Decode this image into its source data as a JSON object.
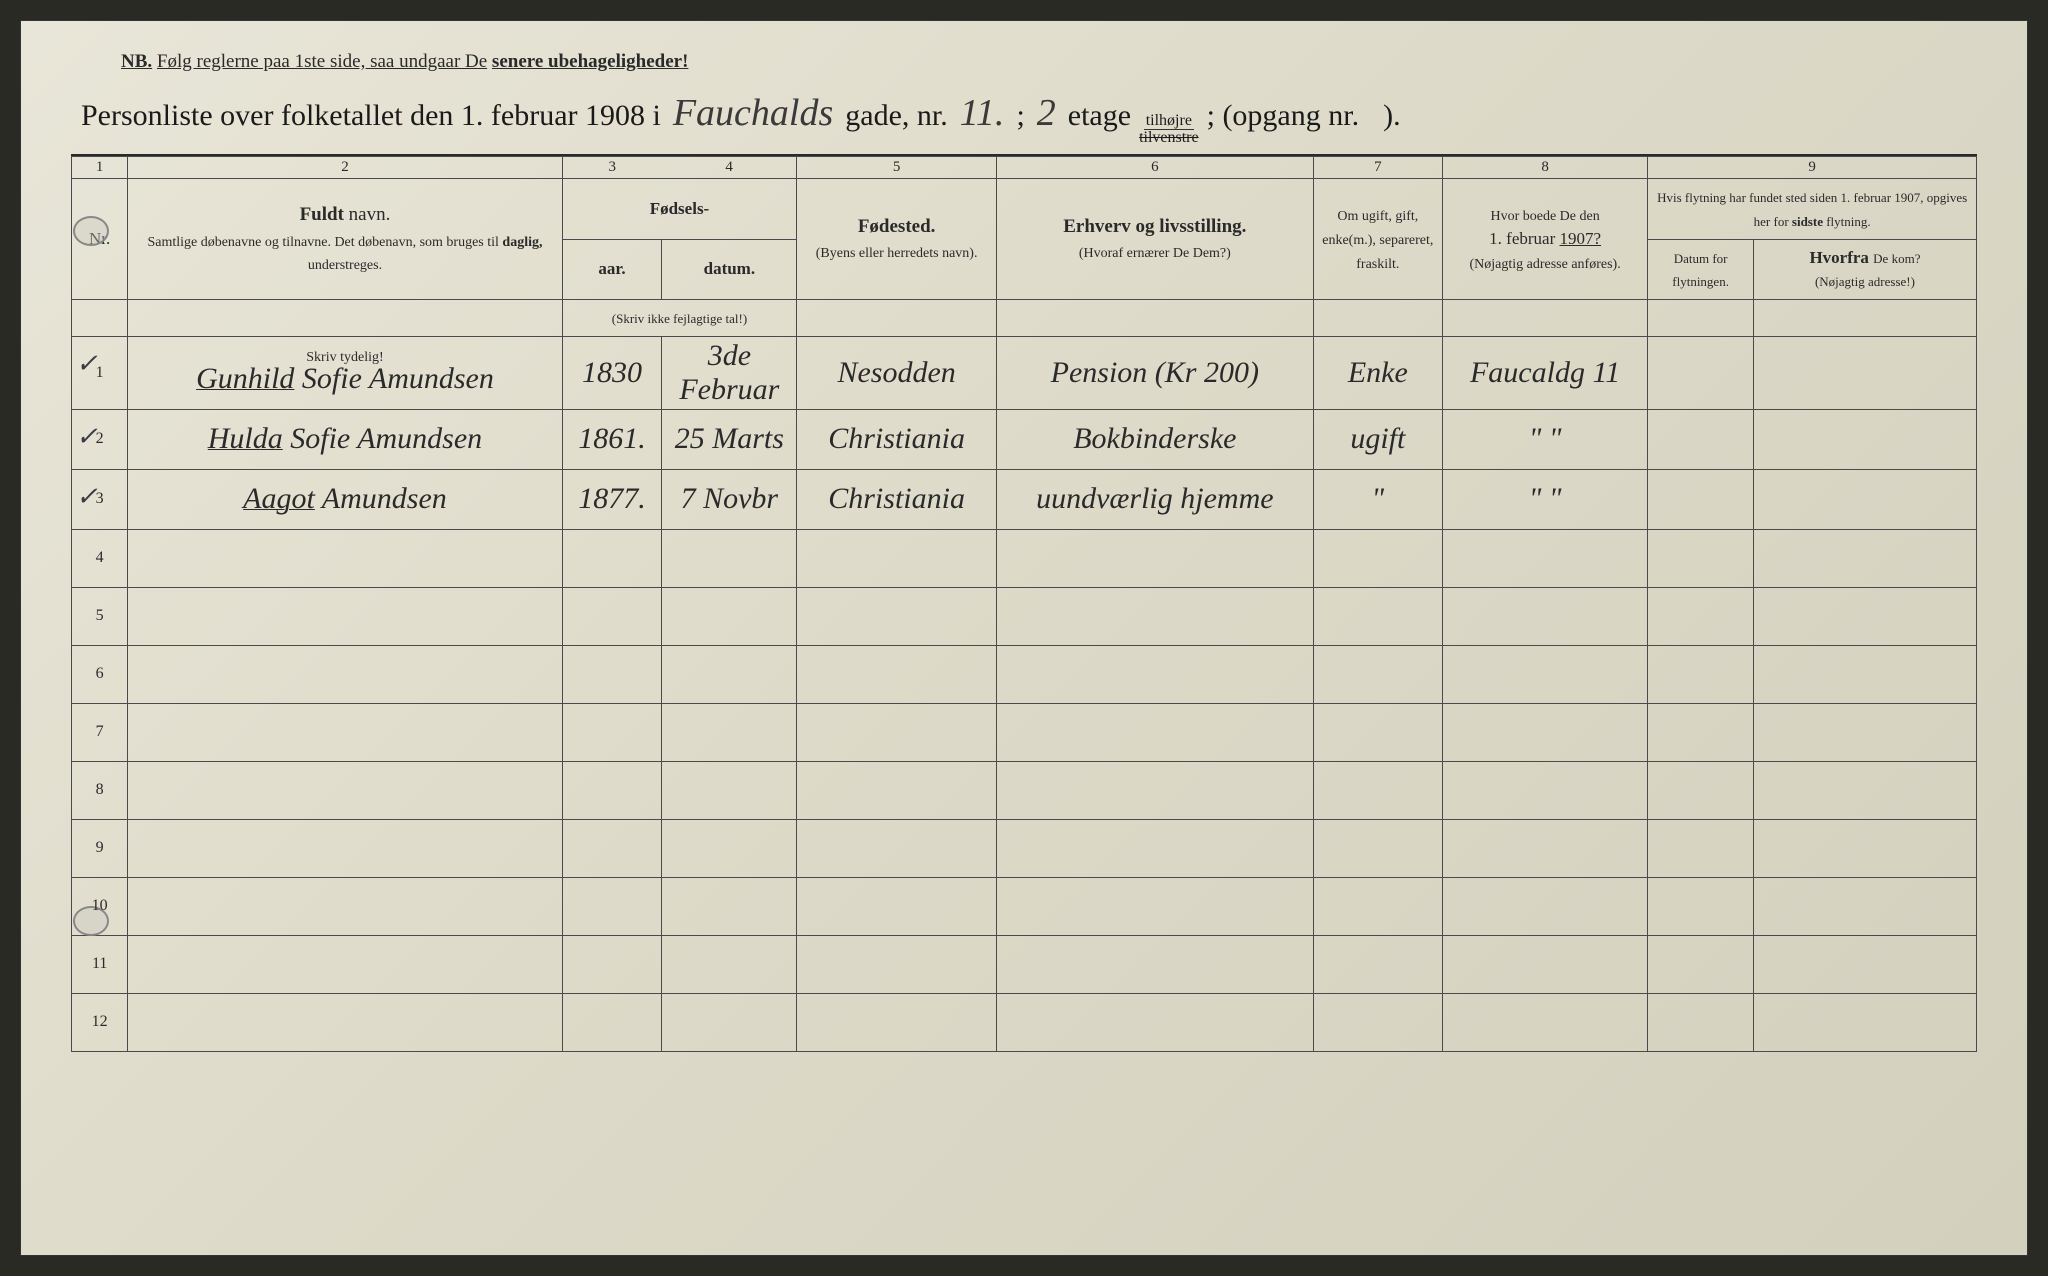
{
  "header": {
    "nb_prefix": "NB.",
    "nb_text_1": "Følg reglerne paa 1ste side, saa undgaar De",
    "nb_text_2": "senere ubehageligheder!",
    "title_1": "Personliste over folketallet den 1. februar 1908 i",
    "street": "Fauchalds",
    "title_2": "gade, nr.",
    "house_nr": "11.",
    "title_3": ";",
    "floor": "2",
    "title_4": "etage",
    "side_top": "tilhøjre",
    "side_bottom": "tilvenstre",
    "title_5": "; (opgang nr.",
    "entrance": "",
    "title_6": ")."
  },
  "colnums": [
    "1",
    "2",
    "3",
    "4",
    "5",
    "6",
    "7",
    "8",
    "9"
  ],
  "headers": {
    "nr": "Nr.",
    "name_main": "Fuldt",
    "name_suffix": "navn.",
    "name_sub": "Samtlige døbenavne og tilnavne. Det døbenavn, som bruges til",
    "name_sub_bold": "daglig,",
    "name_sub_end": "understreges.",
    "birth_header": "Fødsels-",
    "birth_year": "aar.",
    "birth_date": "datum.",
    "birth_note": "(Skriv ikke fejlagtige tal!)",
    "birthplace": "Fødested.",
    "birthplace_sub": "(Byens eller herredets navn).",
    "occupation": "Erhverv og livsstilling.",
    "occupation_sub": "(Hvoraf ernærer De Dem?)",
    "civil": "Om ugift, gift, enke(m.), separeret, fraskilt.",
    "prev_addr_1": "Hvor boede De den",
    "prev_addr_2": "1. februar",
    "prev_addr_year": "1907?",
    "prev_addr_sub": "(Nøjagtig adresse anføres).",
    "move_header_1": "Hvis flytning har fundet sted siden 1. februar 1907, opgives her for",
    "move_header_bold": "sidste",
    "move_header_2": "flytning.",
    "move_date": "Datum for flytningen.",
    "move_from": "Hvorfra",
    "move_from_sub": "De kom?",
    "move_from_note": "(Nøjagtig adresse!)",
    "skriv_tydelig": "Skriv tydelig!"
  },
  "rows": [
    {
      "nr": "1",
      "check": "✓",
      "name_underlined": "Gunhild",
      "name_rest": "Sofie Amundsen",
      "year": "1830",
      "date": "3de Februar",
      "place": "Nesodden",
      "occupation": "Pension (Kr 200)",
      "civil": "Enke",
      "prev_addr": "Faucaldg 11",
      "move_date": "",
      "move_from": ""
    },
    {
      "nr": "2",
      "check": "✓",
      "name_underlined": "Hulda",
      "name_rest": "Sofie Amundsen",
      "year": "1861.",
      "date": "25 Marts",
      "place": "Christiania",
      "occupation": "Bokbinderske",
      "civil": "ugift",
      "prev_addr": "\"    \"",
      "move_date": "",
      "move_from": ""
    },
    {
      "nr": "3",
      "check": "✓",
      "name_underlined": "Aagot",
      "name_rest": "Amundsen",
      "year": "1877.",
      "date": "7 Novbr",
      "place": "Christiania",
      "occupation": "uundværlig hjemme",
      "civil": "\"",
      "prev_addr": "\"    \"",
      "move_date": "",
      "move_from": ""
    }
  ],
  "empty_rows": [
    "4",
    "5",
    "6",
    "7",
    "8",
    "9",
    "10",
    "11",
    "12"
  ]
}
